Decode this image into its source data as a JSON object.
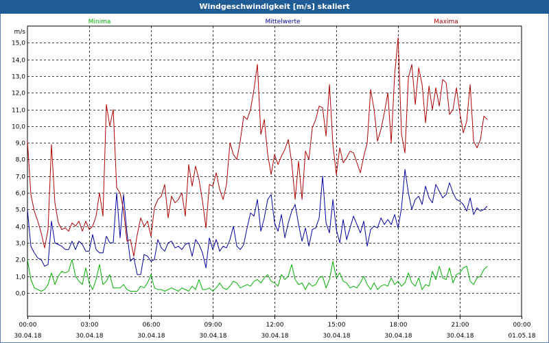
{
  "window": {
    "title": "Windgeschwindigkeit [m/s] skaliert"
  },
  "chart_data": {
    "type": "line",
    "title": "Windgeschwindigkeit [m/s] skaliert",
    "ylabel": "m/s",
    "ylim": [
      -1.4,
      16.0
    ],
    "xlim": [
      0,
      24
    ],
    "grid": true,
    "grid_style": "dashed",
    "legend_position": "top",
    "y_ticks": [
      "0,0",
      "1,0",
      "2,0",
      "3,0",
      "4,0",
      "5,0",
      "6,0",
      "7,0",
      "8,0",
      "9,0",
      "10,0",
      "11,0",
      "12,0",
      "13,0",
      "14,0",
      "15,0"
    ],
    "x_ticks": [
      {
        "time": "00:00",
        "date": "30.04.18"
      },
      {
        "time": "03:00",
        "date": "30.04.18"
      },
      {
        "time": "06:00",
        "date": "30.04.18"
      },
      {
        "time": "09:00",
        "date": "30.04.18"
      },
      {
        "time": "12:00",
        "date": "30.04.18"
      },
      {
        "time": "15:00",
        "date": "30.04.18"
      },
      {
        "time": "18:00",
        "date": "30.04.18"
      },
      {
        "time": "21:00",
        "date": "30.04.18"
      },
      {
        "time": "00:00",
        "date": "01.05.18"
      }
    ],
    "x_step_hours": 0.1667,
    "series": [
      {
        "name": "Minima",
        "color": "#00b000",
        "values": [
          2.0,
          0.8,
          0.3,
          0.2,
          0.1,
          0.2,
          0.5,
          1.2,
          0.5,
          1.0,
          1.3,
          1.2,
          1.3,
          2.0,
          1.0,
          0.7,
          0.5,
          1.5,
          0.6,
          0.2,
          0.8,
          1.7,
          0.5,
          0.7,
          1.1,
          0.3,
          0.3,
          0.3,
          0.5,
          0.2,
          0.1,
          0.1,
          0.1,
          0.4,
          0.3,
          0.6,
          1.1,
          0.3,
          0.2,
          0.2,
          0.1,
          0.2,
          0.3,
          0.2,
          0.1,
          0.3,
          0.2,
          0.1,
          0.4,
          0.2,
          0.8,
          0.2,
          0.2,
          0.3,
          0.1,
          0.3,
          0.6,
          0.3,
          0.2,
          0.4,
          0.7,
          0.6,
          0.3,
          0.4,
          0.5,
          0.4,
          0.7,
          0.8,
          0.6,
          0.9,
          1.1,
          0.7,
          0.6,
          0.4,
          1.1,
          0.8,
          1.0,
          1.7,
          0.8,
          0.5,
          0.6,
          0.2,
          0.6,
          0.4,
          0.5,
          0.9,
          1.0,
          0.3,
          0.8,
          1.9,
          0.9,
          1.2,
          0.7,
          0.6,
          0.3,
          0.4,
          0.3,
          0.6,
          1.0,
          0.5,
          0.2,
          0.6,
          0.2,
          0.4,
          0.5,
          0.4,
          0.9,
          0.5,
          0.7,
          0.4,
          0.6,
          1.2,
          0.6,
          0.4,
          0.9,
          0.2,
          0.5,
          0.4,
          1.3,
          0.8,
          1.6,
          0.9,
          0.8,
          1.5,
          0.6,
          1.1,
          1.2,
          1.5,
          1.6,
          0.7,
          0.5,
          0.9,
          1.0,
          1.4,
          1.6
        ]
      },
      {
        "name": "Mittelwerte",
        "color": "#0000a0",
        "values": [
          5.0,
          2.8,
          2.4,
          2.1,
          2.0,
          1.6,
          1.7,
          4.3,
          3.0,
          2.9,
          2.8,
          2.6,
          2.6,
          3.1,
          2.6,
          3.1,
          2.9,
          2.5,
          2.5,
          3.5,
          2.6,
          2.4,
          2.4,
          3.4,
          3.0,
          3.0,
          6.0,
          3.3,
          5.9,
          3.6,
          1.9,
          2.1,
          1.1,
          1.1,
          2.3,
          2.2,
          1.9,
          2.0,
          3.2,
          2.7,
          2.5,
          3.0,
          3.1,
          2.7,
          2.8,
          2.6,
          2.9,
          3.0,
          2.2,
          3.2,
          2.9,
          2.4,
          1.5,
          3.3,
          2.6,
          3.2,
          2.5,
          2.8,
          2.7,
          3.2,
          4.0,
          2.8,
          2.6,
          2.9,
          3.9,
          4.8,
          4.6,
          5.6,
          3.7,
          4.5,
          5.6,
          5.9,
          4.2,
          3.7,
          4.7,
          3.3,
          4.2,
          4.9,
          5.3,
          4.1,
          3.1,
          3.9,
          2.8,
          3.8,
          3.9,
          4.5,
          7.0,
          4.2,
          3.6,
          5.6,
          3.8,
          3.0,
          4.4,
          3.2,
          3.9,
          4.6,
          4.1,
          3.6,
          4.3,
          2.8,
          3.8,
          4.0,
          3.9,
          4.5,
          4.1,
          4.4,
          4.1,
          4.7,
          3.9,
          5.1,
          7.4,
          6.0,
          5.0,
          5.6,
          5.8,
          5.3,
          6.4,
          5.7,
          5.4,
          6.5,
          6.1,
          5.7,
          5.9,
          6.6,
          6.0,
          5.6,
          5.5,
          5.3,
          4.9,
          5.7,
          4.7,
          5.1,
          4.9,
          5.0,
          5.2
        ]
      },
      {
        "name": "Maxima",
        "color": "#b00000",
        "values": [
          9.1,
          5.9,
          4.9,
          4.3,
          3.6,
          2.7,
          3.8,
          8.9,
          5.4,
          4.2,
          3.8,
          3.9,
          3.7,
          4.2,
          4.0,
          4.3,
          3.7,
          4.3,
          3.8,
          4.0,
          4.6,
          6.0,
          4.6,
          11.3,
          10.0,
          11.0,
          6.3,
          6.0,
          5.0,
          3.1,
          3.2,
          2.2,
          3.5,
          4.5,
          4.0,
          4.3,
          3.4,
          5.1,
          5.6,
          5.8,
          6.5,
          4.5,
          5.8,
          5.4,
          5.6,
          6.0,
          4.6,
          7.7,
          6.4,
          7.6,
          6.8,
          5.5,
          3.9,
          6.5,
          6.4,
          7.2,
          6.2,
          5.6,
          6.5,
          9.0,
          8.3,
          8.0,
          9.1,
          10.6,
          10.4,
          11.0,
          12.2,
          13.7,
          9.5,
          10.4,
          8.3,
          7.1,
          8.3,
          7.7,
          8.2,
          8.6,
          9.2,
          7.8,
          5.6,
          7.9,
          5.6,
          8.5,
          8.0,
          9.9,
          10.4,
          11.2,
          11.1,
          9.4,
          12.5,
          8.9,
          7.1,
          8.7,
          7.8,
          8.1,
          8.5,
          8.4,
          7.8,
          7.2,
          8.2,
          9.0,
          12.2,
          11.0,
          9.1,
          9.8,
          10.8,
          12.0,
          9.0,
          13.1,
          15.3,
          9.5,
          8.4,
          12.9,
          13.7,
          11.3,
          13.5,
          12.5,
          10.2,
          12.4,
          11.0,
          12.3,
          11.2,
          12.8,
          12.6,
          10.7,
          11.0,
          12.3,
          10.8,
          9.6,
          10.3,
          12.5,
          9.1,
          8.7,
          9.2,
          10.6,
          10.4
        ]
      }
    ]
  }
}
